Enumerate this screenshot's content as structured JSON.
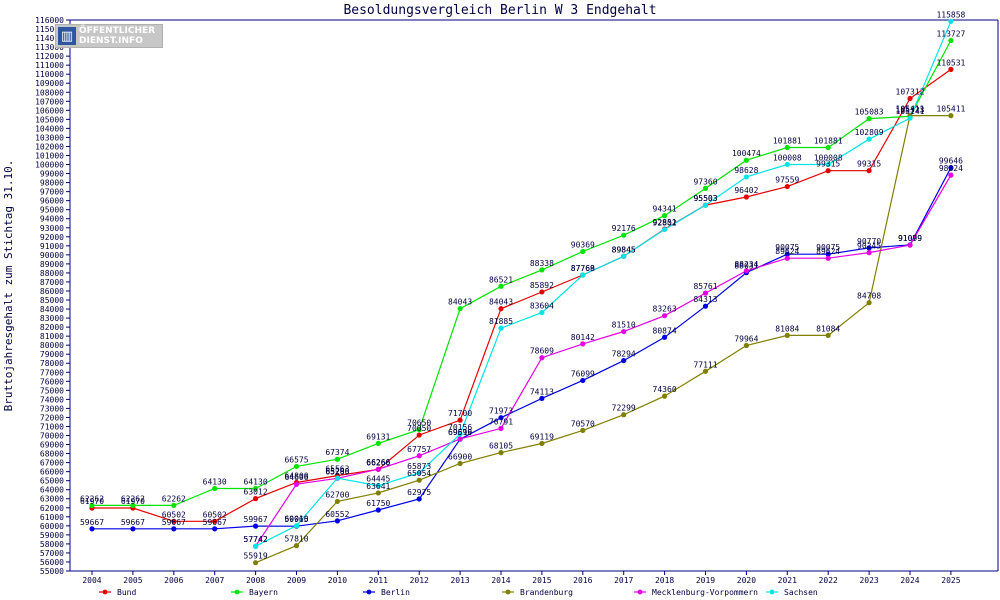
{
  "logo": {
    "line1": "ÖFFENTLICHER",
    "line2": "DIENST.INFO",
    "icon": "bar-chart-icon"
  },
  "chart_data": {
    "type": "line",
    "title": "Besoldungsvergleich Berlin W 3 Endgehalt",
    "xlabel": "",
    "ylabel": "Bruttojahresgehalt zum Stichtag 31.10.",
    "ylim": [
      55000,
      116000
    ],
    "ystep": 1000,
    "grid": false,
    "legend_position": "bottom",
    "categories": [
      "2004",
      "2005",
      "2006",
      "2007",
      "2008",
      "2009",
      "2010",
      "2011",
      "2012",
      "2013",
      "2014",
      "2015",
      "2016",
      "2017",
      "2018",
      "2019",
      "2020",
      "2021",
      "2022",
      "2023",
      "2024",
      "2025"
    ],
    "series": [
      {
        "name": "Bund",
        "color": "#e50000",
        "values": [
          61970,
          61970,
          60502,
          60502,
          63012,
          64800,
          65563,
          66260,
          70050,
          71700,
          84043,
          85892,
          87768,
          89845,
          92851,
          95503,
          96402,
          97559,
          99315,
          99315,
          107312,
          110531
        ]
      },
      {
        "name": "Bayern",
        "color": "#00e500",
        "values": [
          62262,
          62262,
          62262,
          64130,
          64130,
          66575,
          67374,
          69131,
          70650,
          84043,
          86521,
          88338,
          90369,
          92176,
          94341,
          97360,
          100474,
          101881,
          101881,
          105083,
          105323,
          113727
        ]
      },
      {
        "name": "Berlin",
        "color": "#0000e5",
        "values": [
          59667,
          59667,
          59667,
          59667,
          59967,
          59965,
          60552,
          61750,
          62975,
          69596,
          71973,
          74113,
          76099,
          78294,
          80874,
          84313,
          88031,
          90075,
          90075,
          90770,
          91099,
          99646
        ]
      },
      {
        "name": "Brandenburg",
        "color": "#808000",
        "values": [
          null,
          null,
          null,
          null,
          55919,
          57810,
          62700,
          63641,
          65054,
          66900,
          68105,
          69119,
          70570,
          72299,
          74360,
          77111,
          79964,
          81084,
          81084,
          84708,
          105411,
          105411
        ]
      },
      {
        "name": "Mecklenburg-Vorpommern",
        "color": "#e500e5",
        "values": [
          null,
          null,
          null,
          null,
          57742,
          64606,
          65265,
          66266,
          67757,
          69619,
          70791,
          78609,
          80142,
          81510,
          83263,
          85761,
          88234,
          89624,
          89624,
          90245,
          91079,
          98824
        ]
      },
      {
        "name": "Sachsen",
        "color": "#00e5e5",
        "values": [
          null,
          null,
          null,
          null,
          57742,
          60010,
          65290,
          64445,
          65873,
          70156,
          81885,
          83604,
          87769,
          89845,
          92802,
          95503,
          98628,
          100008,
          100008,
          102809,
          105141,
          115858
        ]
      }
    ]
  }
}
